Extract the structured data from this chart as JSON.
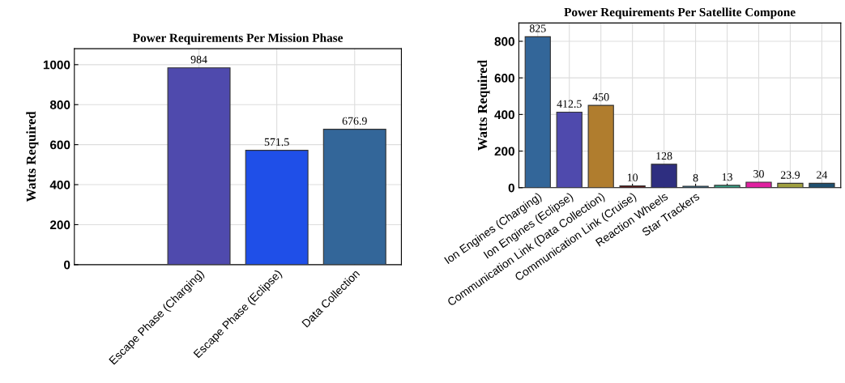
{
  "chart_data": [
    {
      "type": "bar",
      "title": "Power Requirements Per Mission Phase",
      "ylabel": "Watts Required",
      "categories": [
        "Escape Phase (Charging)",
        "Escape Phase (Eclipse)",
        "Data Collection"
      ],
      "values": [
        984,
        571.5,
        676.9
      ],
      "colors": [
        "#4f4aad",
        "#1f4fe8",
        "#336699"
      ],
      "ylim": [
        0,
        1080
      ],
      "yticks": [
        0,
        200,
        400,
        600,
        800,
        1000
      ],
      "grid": true,
      "data_labels": true
    },
    {
      "type": "bar",
      "title": "Power Requirements Per Satellite Compone",
      "ylabel": "Watts Required",
      "categories": [
        "Ion Engines (Charging)",
        "Ion Engines (Eclipse)",
        "Communication Link (Data Collection)",
        "Communication Link (Cruise)",
        "Reaction Wheels",
        "Star Trackers",
        null,
        null,
        null,
        null
      ],
      "values": [
        825,
        412.5,
        450,
        10,
        128,
        8,
        13,
        30,
        23.9,
        24
      ],
      "colors": [
        "#336699",
        "#4f4aad",
        "#b07d2e",
        "#5c1a1a",
        "#2e2e80",
        "#2e6a8a",
        "#3aa58a",
        "#e020a0",
        "#a0a040",
        "#1f4f6f"
      ],
      "ylim": [
        0,
        900
      ],
      "yticks": [
        0,
        200,
        400,
        600,
        800
      ],
      "grid": true,
      "data_labels": true
    }
  ]
}
